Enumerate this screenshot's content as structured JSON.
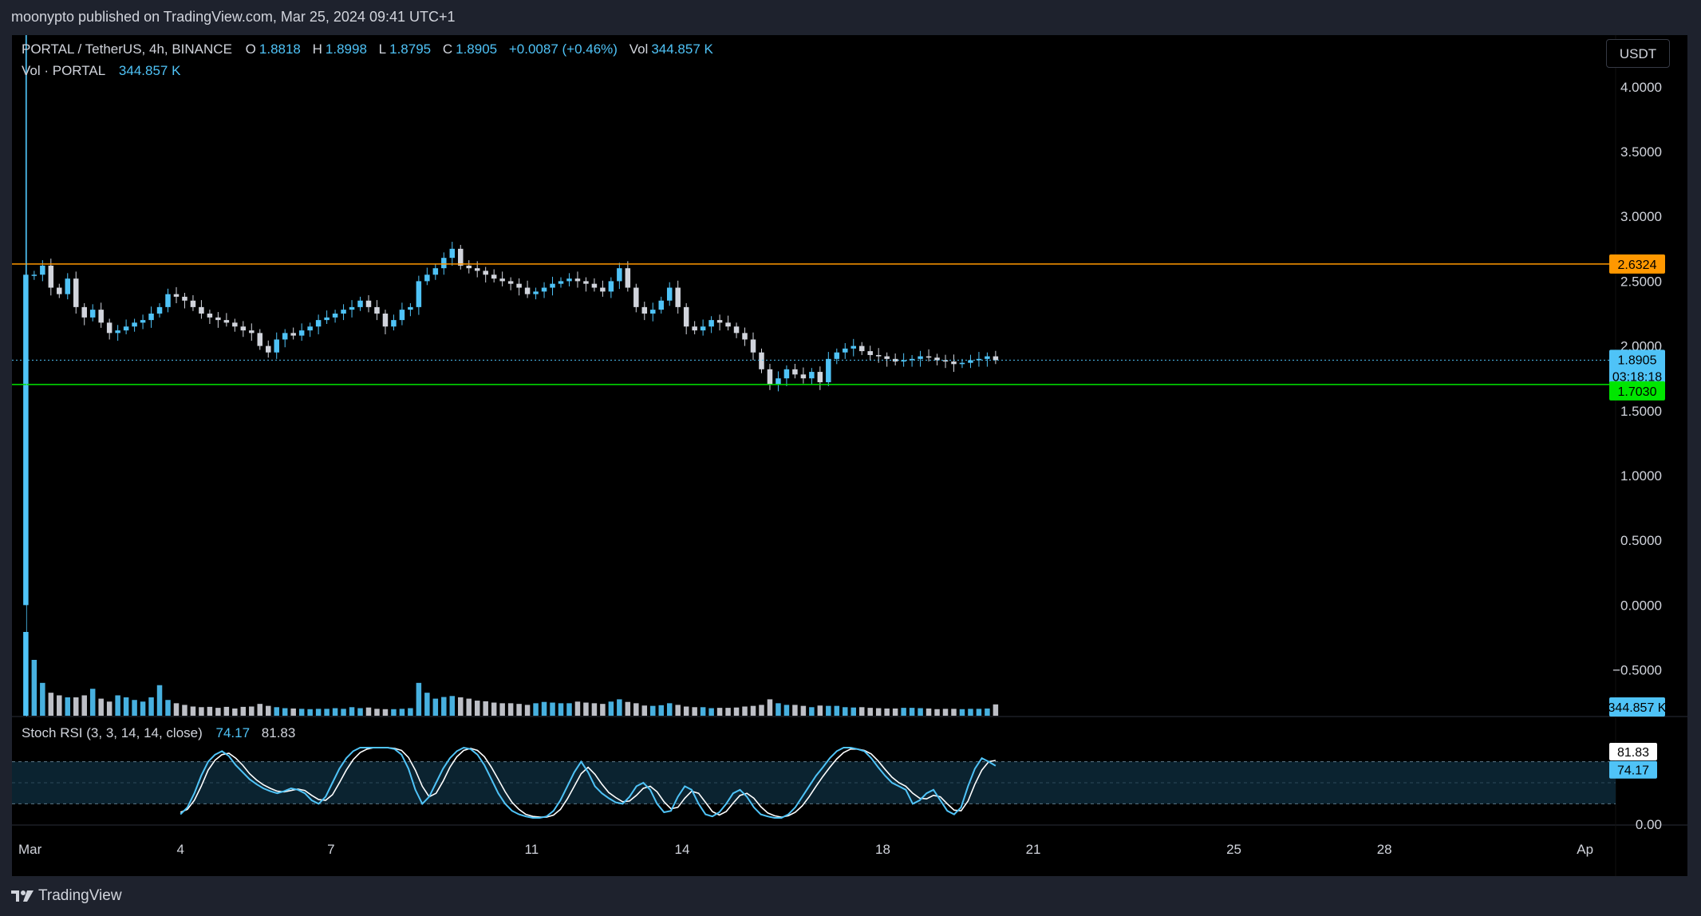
{
  "publish_bar": {
    "text": "moonypto published on TradingView.com, Mar 25, 2024 09:41 UTC+1"
  },
  "legend": {
    "symbol": "PORTAL / TetherUS, 4h, BINANCE",
    "open_label": "O",
    "open": "1.8818",
    "high_label": "H",
    "high": "1.8998",
    "low_label": "L",
    "low": "1.8795",
    "close_label": "C",
    "close": "1.8905",
    "change": "+0.0087 (+0.46%)",
    "vol_label": "Vol",
    "vol": "344.857 K",
    "vol_series_label": "Vol · PORTAL",
    "vol_series_value": "344.857 K"
  },
  "currency_button": "USDT",
  "stoch": {
    "label": "Stoch RSI (3, 3, 14, 14, close)",
    "k": "74.17",
    "d": "81.83"
  },
  "footer": {
    "brand": "TradingView"
  },
  "colors": {
    "bull": "#4fc3f7",
    "bear": "#d1d4dc",
    "resistance": "#ff9800",
    "support": "#00e600",
    "grid_text": "#d1d4dc",
    "k_line": "#4fc3f7",
    "d_line": "#ffffff"
  },
  "chart_data": {
    "type": "candlestick",
    "symbol": "PORTAL / TetherUS",
    "interval": "4h",
    "y_ticks": [
      "4.0000",
      "3.5000",
      "3.0000",
      "2.5000",
      "2.0000",
      "1.5000",
      "1.0000",
      "0.5000",
      "0.0000",
      "−0.5000"
    ],
    "y_tick_values": [
      4,
      3.5,
      3,
      2.5,
      2,
      1.5,
      1,
      0.5,
      0,
      -0.5
    ],
    "ylim": [
      -0.86,
      4.35
    ],
    "x_ticks": [
      {
        "label": "Mar",
        "day": 0
      },
      {
        "label": "4",
        "day": 3
      },
      {
        "label": "7",
        "day": 6
      },
      {
        "label": "11",
        "day": 10
      },
      {
        "label": "14",
        "day": 13
      },
      {
        "label": "18",
        "day": 17
      },
      {
        "label": "21",
        "day": 20
      },
      {
        "label": "25",
        "day": 24
      },
      {
        "label": "28",
        "day": 27
      },
      {
        "label": "Ap",
        "day": 31
      }
    ],
    "x_days_range": [
      -0.36,
      31.61
    ],
    "first_candle_day": 0.083,
    "candles_per_day": 6,
    "resistance": {
      "value": 2.6324,
      "label": "2.6324"
    },
    "support": {
      "value": 1.703,
      "label": "1.7030"
    },
    "last_price": {
      "value": 1.8905,
      "label": "1.8905",
      "countdown": "03:18:18"
    },
    "last_volume_label": "344.857 K",
    "closes": [
      2.55,
      2.62,
      2.45,
      2.4,
      2.52,
      2.3,
      2.22,
      2.28,
      2.18,
      2.1,
      2.12,
      2.15,
      2.18,
      2.2,
      2.25,
      2.3,
      2.4,
      2.38,
      2.35,
      2.3,
      2.25,
      2.22,
      2.2,
      2.18,
      2.15,
      2.12,
      2.1,
      2.0,
      1.95,
      2.05,
      2.1,
      2.08,
      2.12,
      2.15,
      2.2,
      2.22,
      2.25,
      2.28,
      2.3,
      2.35,
      2.3,
      2.25,
      2.15,
      2.2,
      2.28,
      2.3,
      2.5,
      2.55,
      2.6,
      2.68,
      2.75,
      2.62,
      2.6,
      2.58,
      2.55,
      2.52,
      2.5,
      2.48,
      2.45,
      2.4,
      2.42,
      2.45,
      2.48,
      2.5,
      2.52,
      2.5,
      2.48,
      2.45,
      2.42,
      2.5,
      2.6,
      2.45,
      2.3,
      2.25,
      2.28,
      2.35,
      2.45,
      2.3,
      2.15,
      2.12,
      2.15,
      2.2,
      2.18,
      2.15,
      2.1,
      2.05,
      1.95,
      1.82,
      1.7,
      1.75,
      1.82,
      1.78,
      1.75,
      1.8,
      1.72,
      1.9,
      1.95,
      1.98,
      2.0,
      1.96,
      1.93,
      1.92,
      1.9,
      1.88,
      1.89,
      1.9,
      1.92,
      1.91,
      1.89,
      1.88,
      1.86,
      1.87,
      1.89,
      1.9,
      1.92,
      1.8905
    ],
    "volumes_k": [
      1700,
      1000,
      700,
      620,
      560,
      560,
      620,
      820,
      520,
      430,
      620,
      560,
      480,
      430,
      560,
      930,
      480,
      380,
      330,
      280,
      260,
      270,
      240,
      270,
      220,
      270,
      280,
      360,
      300,
      260,
      230,
      220,
      210,
      200,
      210,
      210,
      230,
      210,
      260,
      230,
      250,
      210,
      200,
      200,
      210,
      230,
      1000,
      700,
      520,
      570,
      600,
      560,
      520,
      460,
      440,
      400,
      380,
      380,
      360,
      330,
      380,
      420,
      400,
      380,
      380,
      430,
      400,
      380,
      360,
      430,
      500,
      420,
      380,
      310,
      300,
      320,
      380,
      330,
      280,
      260,
      260,
      230,
      240,
      240,
      250,
      280,
      300,
      330,
      500,
      380,
      330,
      330,
      300,
      260,
      310,
      300,
      300,
      260,
      250,
      260,
      240,
      230,
      220,
      220,
      240,
      240,
      230,
      220,
      200,
      210,
      210,
      200,
      210,
      210,
      220,
      345
    ],
    "stoch_rsi": {
      "params": "3, 3, 14, 14, close",
      "k_last": 74.17,
      "d_last": 81.83,
      "bands": [
        80,
        20
      ],
      "y_ticks": [
        "0.00"
      ],
      "k": [
        5,
        15,
        35,
        60,
        80,
        90,
        95,
        88,
        75,
        65,
        55,
        48,
        42,
        38,
        35,
        38,
        42,
        40,
        35,
        25,
        20,
        30,
        50,
        70,
        85,
        95,
        100,
        100,
        100,
        100,
        100,
        98,
        90,
        70,
        40,
        20,
        30,
        50,
        70,
        85,
        95,
        100,
        98,
        90,
        75,
        55,
        35,
        20,
        10,
        5,
        2,
        0,
        0,
        2,
        10,
        25,
        45,
        65,
        80,
        65,
        45,
        35,
        28,
        22,
        20,
        30,
        45,
        50,
        40,
        20,
        8,
        10,
        30,
        45,
        40,
        20,
        5,
        2,
        8,
        20,
        35,
        40,
        30,
        15,
        5,
        2,
        0,
        0,
        5,
        15,
        30,
        45,
        60,
        72,
        85,
        95,
        100,
        100,
        98,
        95,
        85,
        72,
        60,
        50,
        45,
        40,
        20,
        25,
        35,
        40,
        25,
        10,
        5,
        15,
        45,
        70,
        85,
        80,
        74.17
      ],
      "d": [
        8,
        12,
        25,
        45,
        68,
        82,
        90,
        92,
        85,
        75,
        63,
        54,
        47,
        42,
        38,
        37,
        39,
        41,
        39,
        32,
        26,
        25,
        33,
        50,
        68,
        83,
        93,
        98,
        100,
        100,
        100,
        99,
        96,
        86,
        68,
        45,
        30,
        35,
        52,
        72,
        87,
        96,
        99,
        96,
        87,
        72,
        55,
        37,
        22,
        12,
        5,
        2,
        1,
        1,
        4,
        12,
        27,
        45,
        63,
        72,
        62,
        48,
        36,
        29,
        23,
        24,
        32,
        42,
        45,
        37,
        23,
        13,
        15,
        28,
        38,
        35,
        22,
        9,
        4,
        9,
        21,
        32,
        35,
        28,
        16,
        7,
        3,
        1,
        3,
        8,
        17,
        30,
        45,
        59,
        72,
        84,
        93,
        98,
        98,
        96,
        91,
        81,
        69,
        58,
        50,
        45,
        35,
        28,
        27,
        32,
        30,
        20,
        11,
        10,
        24,
        48,
        68,
        80,
        81.83
      ]
    }
  }
}
